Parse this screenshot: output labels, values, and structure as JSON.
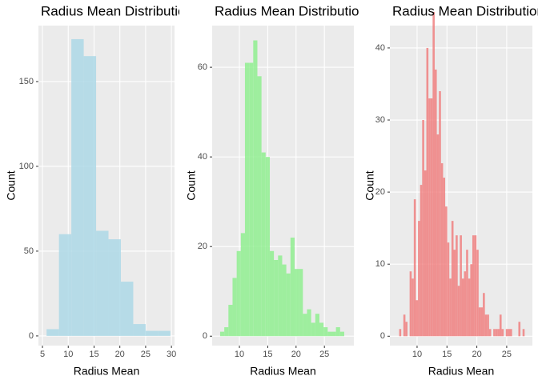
{
  "chart_data": [
    {
      "type": "histogram",
      "title": "Radius Mean Distribution",
      "xlabel": "Radius Mean",
      "ylabel": "Count",
      "bins": [
        5.8,
        8.2,
        10.6,
        13.0,
        15.4,
        17.8,
        20.2,
        22.6,
        25.0,
        27.4,
        29.8
      ],
      "values": [
        4,
        60,
        175,
        165,
        62,
        57,
        32,
        7,
        3,
        3
      ],
      "color": "#add8e6",
      "alpha": 0.85,
      "xlim": [
        4.22,
        30.6
      ],
      "xticks": [
        5,
        10,
        15,
        20,
        25,
        30
      ],
      "ylim": [
        -5.7,
        183
      ],
      "yticks": [
        0,
        50,
        100,
        150
      ],
      "grid": true
    },
    {
      "type": "histogram",
      "title": "Radius Mean Distribution",
      "xlabel": "Radius Mean",
      "ylabel": "Count",
      "bins": [
        6.6,
        7.33,
        8.06,
        8.79,
        9.52,
        10.25,
        10.98,
        11.71,
        12.44,
        13.17,
        13.9,
        14.63,
        15.36,
        16.09,
        16.82,
        17.55,
        18.28,
        19.01,
        19.74,
        20.47,
        21.2,
        21.93,
        22.66,
        23.39,
        24.12,
        24.85,
        25.58,
        26.31,
        27.04,
        27.77,
        28.5
      ],
      "values": [
        1,
        2,
        7,
        13,
        19,
        23,
        61,
        61,
        66,
        58,
        41,
        40,
        19,
        17,
        18,
        16,
        14,
        22,
        15,
        15,
        5,
        6,
        3,
        5,
        3,
        2,
        1,
        1,
        2,
        1
      ],
      "color": "#90ee90",
      "alpha": 0.85,
      "xlim": [
        5.19,
        30.2
      ],
      "xticks": [
        10,
        15,
        20,
        25
      ],
      "ylim": [
        -2.1,
        69.3
      ],
      "yticks": [
        0,
        20,
        40,
        60
      ],
      "grid": true
    },
    {
      "type": "histogram",
      "title": "Radius Mean Distribution",
      "xlabel": "Radius Mean",
      "ylabel": "Count",
      "bins": [
        7.0,
        7.35,
        7.7,
        8.05,
        8.4,
        8.75,
        9.1,
        9.45,
        9.8,
        10.15,
        10.5,
        10.85,
        11.2,
        11.55,
        11.9,
        12.25,
        12.6,
        12.95,
        13.3,
        13.65,
        14.0,
        14.35,
        14.7,
        15.05,
        15.4,
        15.75,
        16.1,
        16.45,
        16.8,
        17.15,
        17.5,
        17.85,
        18.2,
        18.55,
        18.9,
        19.25,
        19.6,
        19.95,
        20.3,
        20.65,
        21.0,
        21.35,
        21.7,
        22.05,
        22.4,
        22.75,
        23.1,
        23.45,
        23.8,
        24.15,
        24.5,
        24.85,
        25.2,
        25.55,
        25.9,
        26.25,
        26.6,
        26.95,
        27.3,
        27.65,
        28.0
      ],
      "values": [
        1,
        0,
        3,
        2,
        0,
        9,
        8,
        19,
        5,
        16,
        21,
        30,
        23,
        40,
        33,
        33,
        45,
        37,
        28,
        34,
        24,
        22,
        18,
        13,
        8,
        16,
        12,
        14,
        7,
        14,
        8,
        9,
        12,
        8,
        10,
        14,
        14,
        12,
        4,
        4,
        6,
        3,
        3,
        1,
        0,
        1,
        1,
        1,
        3,
        1,
        0,
        1,
        1,
        1,
        0,
        0,
        0,
        2,
        0,
        1
      ],
      "color": "#f08080",
      "alpha": 0.85,
      "xlim": [
        5.45,
        29.3
      ],
      "xticks": [
        10,
        15,
        20,
        25
      ],
      "ylim": [
        -1.3,
        43.1
      ],
      "yticks": [
        0,
        10,
        20,
        30,
        40
      ],
      "grid": true
    }
  ]
}
